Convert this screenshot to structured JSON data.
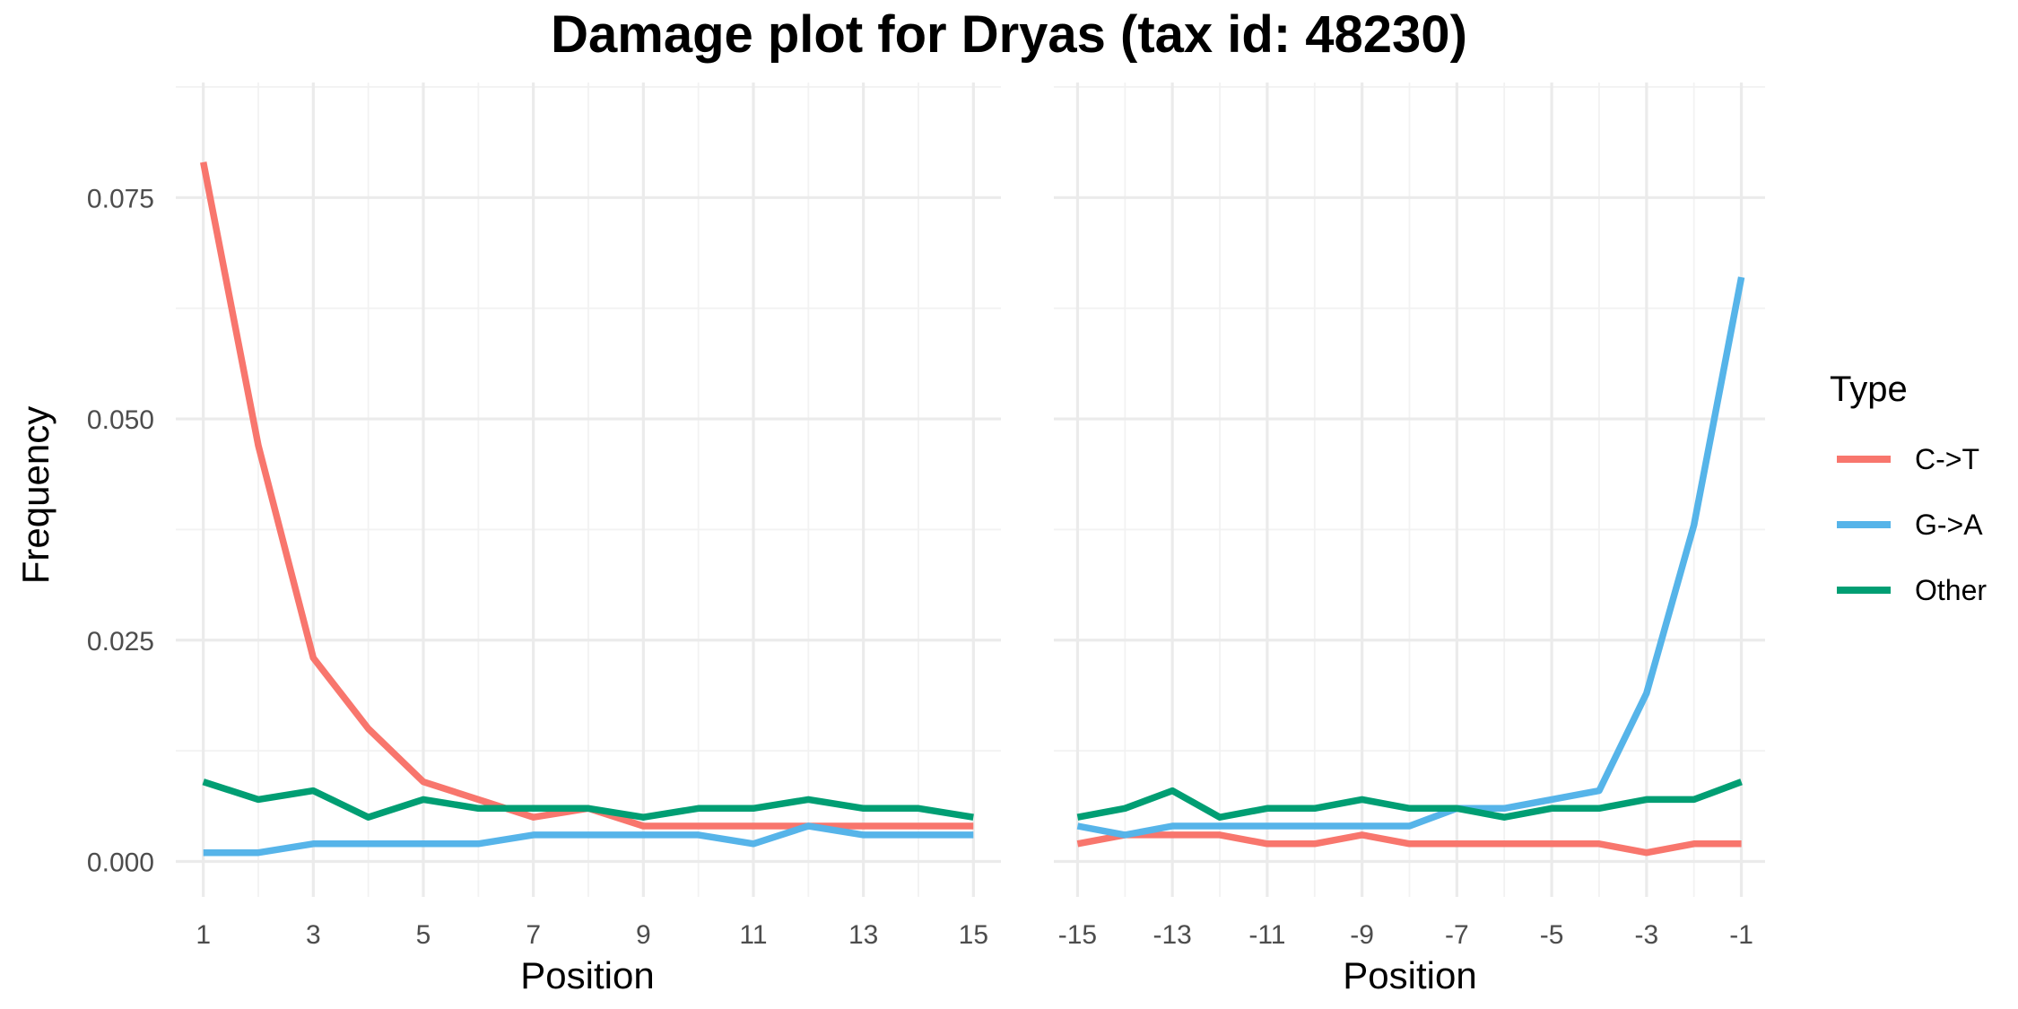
{
  "chart_data": {
    "type": "line",
    "title": "Damage plot for Dryas (tax id: 48230)",
    "ylabel": "Frequency",
    "ylim": [
      -0.004,
      0.088
    ],
    "yticks": [
      0.0,
      0.025,
      0.05,
      0.075
    ],
    "ytick_labels": [
      "0.000",
      "0.025",
      "0.050",
      "0.075"
    ],
    "grid": true,
    "legend": {
      "title": "Type",
      "position": "right",
      "entries": [
        "C->T",
        "G->A",
        "Other"
      ]
    },
    "colors": {
      "C->T": "#F8766D",
      "G->A": "#56B4E9",
      "Other": "#009E73"
    },
    "panels": [
      {
        "xlabel": "Position",
        "xlim": [
          0.5,
          15.5
        ],
        "xticks": [
          1,
          3,
          5,
          7,
          9,
          11,
          13,
          15
        ],
        "x": [
          1,
          2,
          3,
          4,
          5,
          6,
          7,
          8,
          9,
          10,
          11,
          12,
          13,
          14,
          15
        ],
        "series": [
          {
            "name": "C->T",
            "values": [
              0.079,
              0.047,
              0.023,
              0.015,
              0.009,
              0.007,
              0.005,
              0.006,
              0.004,
              0.004,
              0.004,
              0.004,
              0.004,
              0.004,
              0.004
            ]
          },
          {
            "name": "G->A",
            "values": [
              0.001,
              0.001,
              0.002,
              0.002,
              0.002,
              0.002,
              0.003,
              0.003,
              0.003,
              0.003,
              0.002,
              0.004,
              0.003,
              0.003,
              0.003
            ]
          },
          {
            "name": "Other",
            "values": [
              0.009,
              0.007,
              0.008,
              0.005,
              0.007,
              0.006,
              0.006,
              0.006,
              0.005,
              0.006,
              0.006,
              0.007,
              0.006,
              0.006,
              0.005
            ]
          }
        ]
      },
      {
        "xlabel": "Position",
        "xlim": [
          -15.5,
          -0.5
        ],
        "xticks": [
          -15,
          -13,
          -11,
          -9,
          -7,
          -5,
          -3,
          -1
        ],
        "x": [
          -15,
          -14,
          -13,
          -12,
          -11,
          -10,
          -9,
          -8,
          -7,
          -6,
          -5,
          -4,
          -3,
          -2,
          -1
        ],
        "series": [
          {
            "name": "C->T",
            "values": [
              0.002,
              0.003,
              0.003,
              0.003,
              0.002,
              0.002,
              0.003,
              0.002,
              0.002,
              0.002,
              0.002,
              0.002,
              0.001,
              0.002,
              0.002
            ]
          },
          {
            "name": "G->A",
            "values": [
              0.004,
              0.003,
              0.004,
              0.004,
              0.004,
              0.004,
              0.004,
              0.004,
              0.006,
              0.006,
              0.007,
              0.008,
              0.019,
              0.038,
              0.066
            ]
          },
          {
            "name": "Other",
            "values": [
              0.005,
              0.006,
              0.008,
              0.005,
              0.006,
              0.006,
              0.007,
              0.006,
              0.006,
              0.005,
              0.006,
              0.006,
              0.007,
              0.007,
              0.009
            ]
          }
        ]
      }
    ]
  }
}
